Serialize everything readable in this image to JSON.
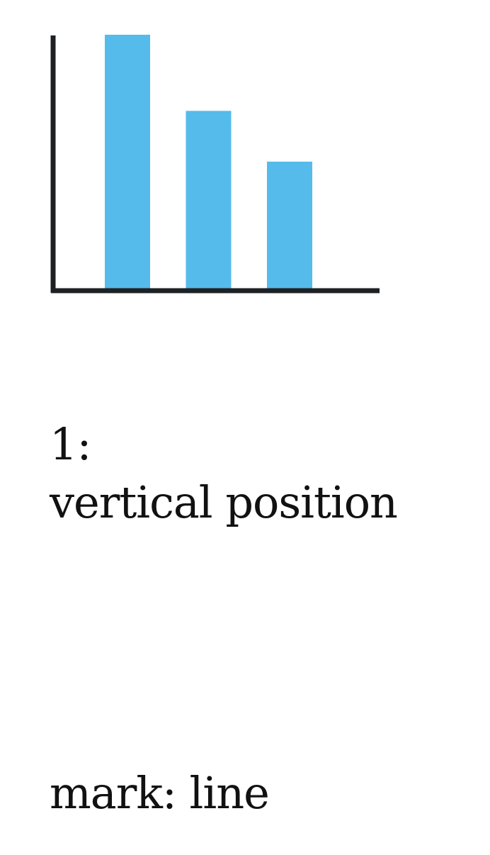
{
  "chart_data": {
    "type": "bar",
    "categories": [
      "",
      "",
      ""
    ],
    "values": [
      100,
      70,
      50
    ],
    "ylim": [
      0,
      100
    ],
    "grid": false,
    "bar_color": "#55bbea",
    "axis_color": "#1e2124",
    "title": "",
    "xlabel": "",
    "ylabel": ""
  },
  "caption": {
    "rank": "1:",
    "channel": "vertical position",
    "mark": "mark: line"
  }
}
